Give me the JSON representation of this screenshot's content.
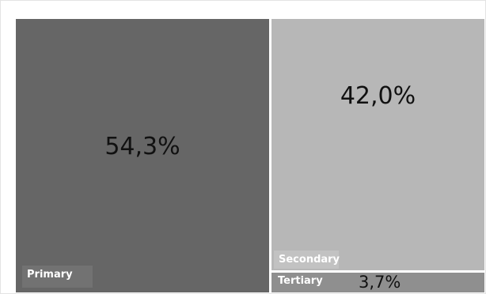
{
  "chart_data": {
    "type": "treemap",
    "title": "",
    "categories": [
      "Primary",
      "Secondary",
      "Tertiary"
    ],
    "values": [
      54.3,
      42.0,
      3.7
    ],
    "value_labels": [
      "54,3%",
      "42,0%",
      "3,7%"
    ],
    "colors": [
      "#666666",
      "#b7b7b7",
      "#8f8f8f"
    ],
    "label_box_colors": [
      "#727272",
      "#c2c2c2",
      "#8f8f8f"
    ],
    "legend": "none"
  }
}
